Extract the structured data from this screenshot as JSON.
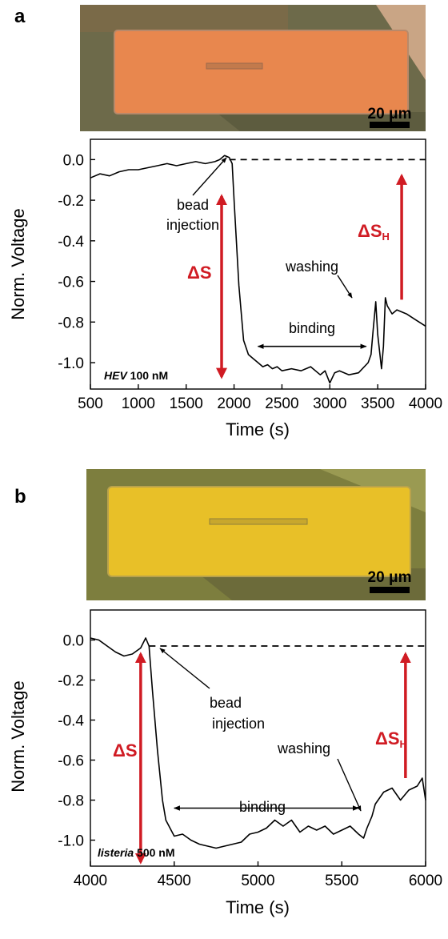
{
  "colors": {
    "annotation_red": "#d01b23",
    "trace": "#000000",
    "chip_a_metal": "#e8874e",
    "chip_a_background": "#6d6a4a",
    "chip_b_metal": "#e8c028",
    "chip_b_background": "#7d7e3e"
  },
  "panels": [
    {
      "id": "a",
      "panel_label": "a",
      "scale_bar_label": "20 μm",
      "sample_label_italic": "HEV",
      "sample_label_rest": " 100 nM",
      "annotations": {
        "bead_injection_1": "bead",
        "bead_injection_2": "injection",
        "delta_s": "ΔS",
        "delta_sh": "ΔS",
        "delta_sh_sub": "H",
        "washing": "washing",
        "binding": "binding"
      }
    },
    {
      "id": "b",
      "panel_label": "b",
      "scale_bar_label": "20 μm",
      "sample_label_italic": "listeria",
      "sample_label_rest": " 500 nM",
      "annotations": {
        "bead_injection_1": "bead",
        "bead_injection_2": "injection",
        "delta_s": "ΔS",
        "delta_sh": "ΔS",
        "delta_sh_sub": "H",
        "washing": "washing",
        "binding": "binding"
      }
    }
  ],
  "chart_data": [
    {
      "type": "line",
      "xlabel": "Time (s)",
      "ylabel": "Norm. Voltage",
      "xlim": [
        500,
        4000
      ],
      "ylim": [
        -1.13,
        0.1
      ],
      "xticks": [
        "500",
        "1000",
        "1500",
        "2000",
        "2500",
        "3000",
        "3500",
        "4000"
      ],
      "yticks": [
        "0.0",
        "-0.2",
        "-0.4",
        "-0.6",
        "-0.8",
        "-1.0"
      ],
      "baseline_dashed": {
        "from_x": 1950,
        "to_x": 4000,
        "y": 0.0
      },
      "delta_s_arrow": {
        "x": 1870,
        "from_y": -1.07,
        "to_y": -0.18
      },
      "delta_sh_arrow": {
        "x": 3750,
        "from_y": -0.69,
        "to_y": -0.08
      },
      "binding_arrow": {
        "from_x": 2250,
        "to_x": 3380,
        "y": -0.92
      },
      "series": [
        {
          "x": [
            500,
            600,
            700,
            800,
            900,
            1000,
            1100,
            1200,
            1300,
            1400,
            1500,
            1600,
            1700,
            1800,
            1850,
            1900,
            1950,
            1980,
            2000,
            2050,
            2100,
            2150,
            2200,
            2250,
            2300,
            2350,
            2400,
            2450,
            2500,
            2600,
            2700,
            2800,
            2900,
            2950,
            3000,
            3050,
            3100,
            3200,
            3300,
            3400,
            3430,
            3450,
            3480,
            3500,
            3540,
            3560,
            3580,
            3600,
            3650,
            3700,
            3800,
            3900,
            4000
          ],
          "y": [
            -0.09,
            -0.07,
            -0.08,
            -0.06,
            -0.05,
            -0.05,
            -0.04,
            -0.03,
            -0.02,
            -0.03,
            -0.02,
            -0.01,
            -0.02,
            -0.01,
            0.0,
            0.02,
            0.01,
            -0.02,
            -0.2,
            -0.62,
            -0.89,
            -0.96,
            -0.98,
            -1.0,
            -1.02,
            -1.01,
            -1.03,
            -1.02,
            -1.04,
            -1.03,
            -1.04,
            -1.02,
            -1.06,
            -1.04,
            -1.1,
            -1.05,
            -1.04,
            -1.06,
            -1.05,
            -1.0,
            -0.96,
            -0.85,
            -0.7,
            -0.86,
            -1.03,
            -0.92,
            -0.68,
            -0.72,
            -0.76,
            -0.74,
            -0.76,
            -0.79,
            -0.82
          ]
        }
      ]
    },
    {
      "type": "line",
      "xlabel": "Time (s)",
      "ylabel": "Norm. Voltage",
      "xlim": [
        4000,
        6000
      ],
      "ylim": [
        -1.13,
        0.15
      ],
      "xticks": [
        "4000",
        "4500",
        "5000",
        "5500",
        "6000"
      ],
      "yticks": [
        "0.0",
        "-0.2",
        "-0.4",
        "-0.6",
        "-0.8",
        "-1.0"
      ],
      "baseline_dashed": {
        "from_x": 4350,
        "to_x": 6000,
        "y": -0.03
      },
      "delta_s_arrow": {
        "x": 4300,
        "from_y": -1.11,
        "to_y": -0.07
      },
      "delta_sh_arrow": {
        "x": 5880,
        "from_y": -0.69,
        "to_y": -0.07
      },
      "binding_arrow": {
        "from_x": 4500,
        "to_x": 5600,
        "y": -0.84
      },
      "series": [
        {
          "x": [
            4000,
            4050,
            4100,
            4150,
            4200,
            4250,
            4300,
            4330,
            4350,
            4370,
            4400,
            4430,
            4450,
            4500,
            4550,
            4600,
            4650,
            4700,
            4750,
            4800,
            4850,
            4900,
            4950,
            5000,
            5050,
            5100,
            5150,
            5200,
            5250,
            5300,
            5350,
            5400,
            5450,
            5500,
            5550,
            5600,
            5630,
            5650,
            5680,
            5700,
            5750,
            5800,
            5850,
            5900,
            5950,
            5980,
            6000
          ],
          "y": [
            0.01,
            0.0,
            -0.03,
            -0.06,
            -0.08,
            -0.07,
            -0.04,
            0.01,
            -0.03,
            -0.25,
            -0.55,
            -0.8,
            -0.9,
            -0.98,
            -0.97,
            -1.0,
            -1.02,
            -1.03,
            -1.04,
            -1.03,
            -1.02,
            -1.01,
            -0.97,
            -0.96,
            -0.94,
            -0.9,
            -0.93,
            -0.9,
            -0.96,
            -0.93,
            -0.95,
            -0.93,
            -0.97,
            -0.95,
            -0.93,
            -0.97,
            -0.99,
            -0.94,
            -0.88,
            -0.82,
            -0.76,
            -0.74,
            -0.8,
            -0.75,
            -0.73,
            -0.69,
            -0.8
          ]
        }
      ]
    }
  ]
}
